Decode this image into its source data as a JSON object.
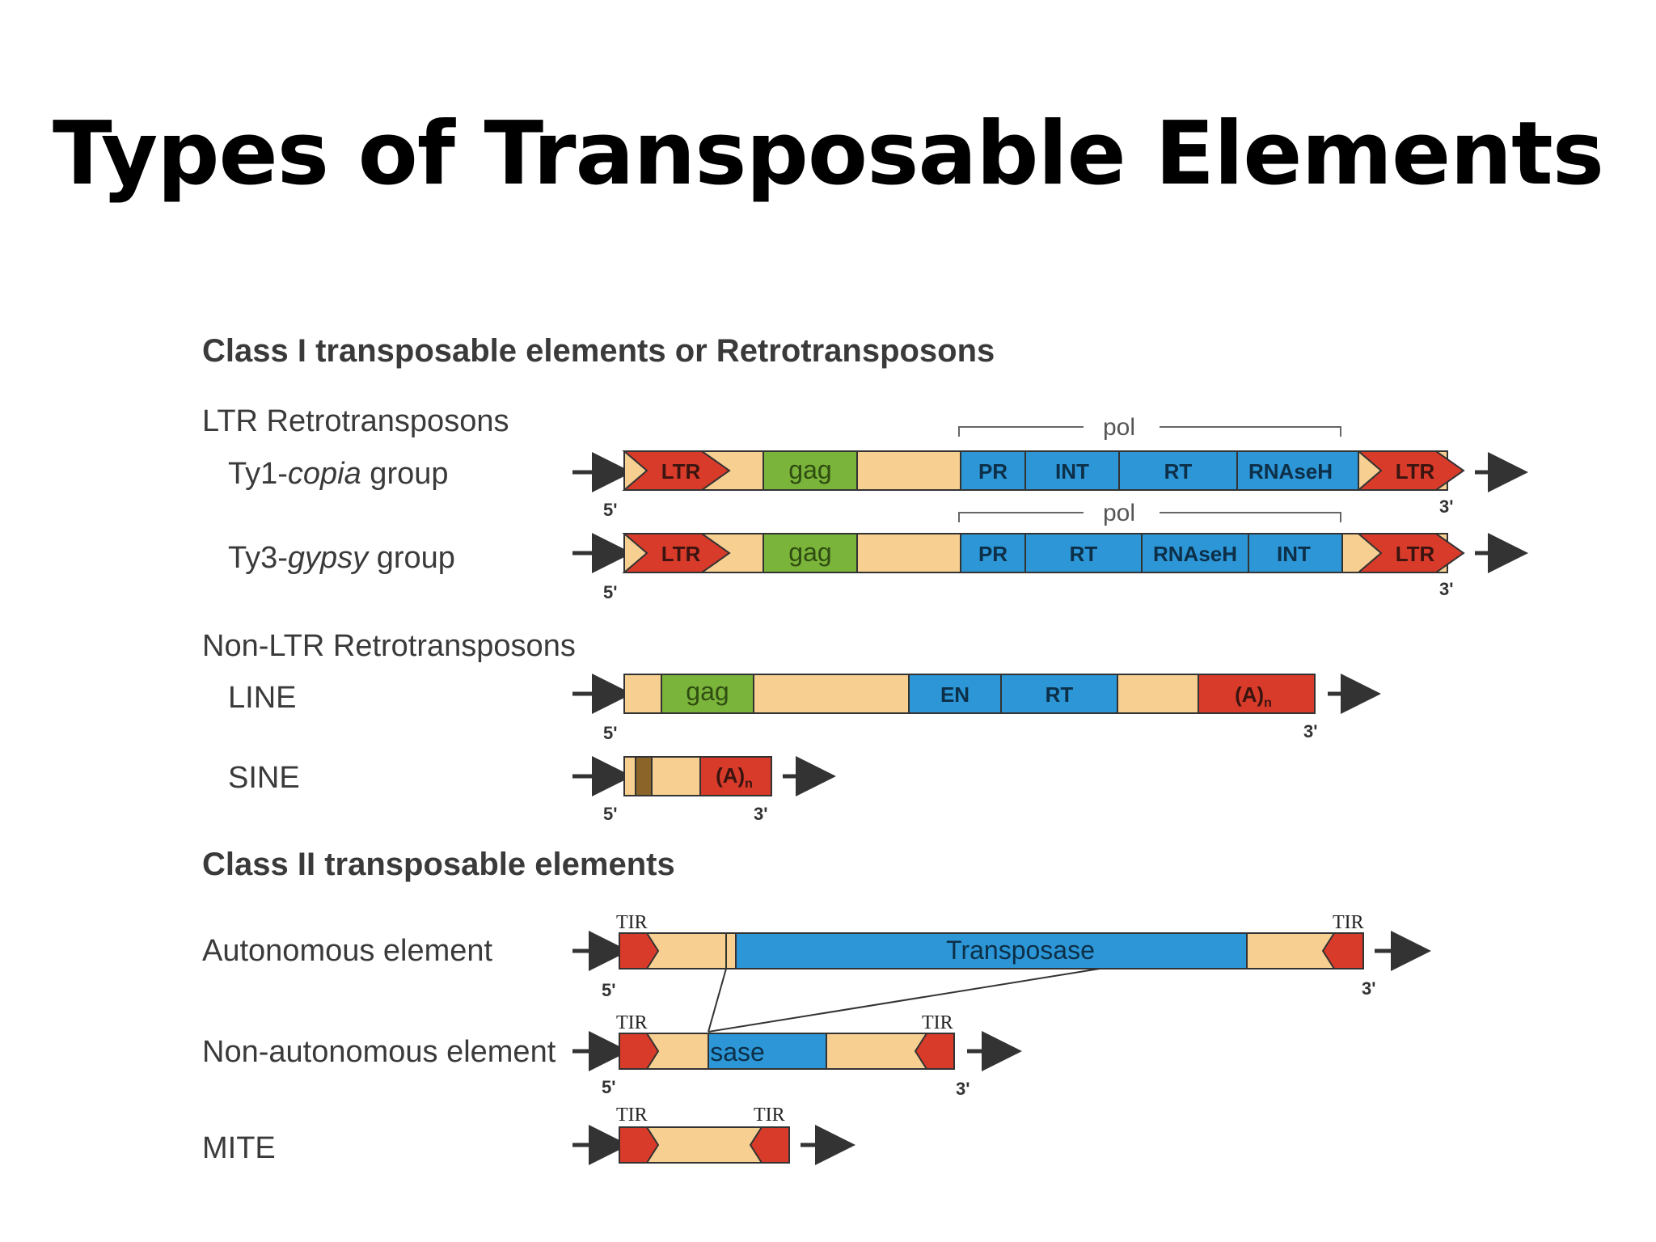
{
  "title": "Types of Transposable Elements",
  "colors": {
    "background": "#f6cf91",
    "ltr": "#d83b2a",
    "gag": "#7bb43a",
    "pol": "#2c96d6",
    "polyA": "#d83b2a",
    "tir": "#d83b2a",
    "outline": "#333333"
  },
  "class1": {
    "heading": "Class I transposable elements or Retrotransposons",
    "ltr_heading": "LTR Retrotransposons",
    "nonltr_heading": "Non-LTR Retrotransposons",
    "ty1": {
      "label_pre": "Ty1-",
      "label_italic": "copia",
      "label_post": " group",
      "pol": "pol",
      "ltr_left": "LTR",
      "gag": "gag",
      "pr": "PR",
      "int": "INT",
      "rt": "RT",
      "rnaseh": "RNAseH",
      "ltr_right": "LTR",
      "five": "5'",
      "three": "3'"
    },
    "ty3": {
      "label_pre": "Ty3-",
      "label_italic": "gypsy",
      "label_post": " group",
      "pol": "pol",
      "ltr_left": "LTR",
      "gag": "gag",
      "pr": "PR",
      "rt": "RT",
      "rnaseh": "RNAseH",
      "int": "INT",
      "ltr_right": "LTR",
      "five": "5'",
      "three": "3'"
    },
    "line": {
      "label": "LINE",
      "gag": "gag",
      "en": "EN",
      "rt": "RT",
      "polyA": "(A)",
      "polyA_sub": "n",
      "five": "5'",
      "three": "3'"
    },
    "sine": {
      "label": "SINE",
      "polyA": "(A)",
      "polyA_sub": "n",
      "five": "5'",
      "three": "3'"
    }
  },
  "class2": {
    "heading": "Class II transposable elements",
    "autonomous": {
      "label": "Autonomous element",
      "transposase": "Transposase",
      "tir_left": "TIR",
      "tir_right": "TIR",
      "five": "5'",
      "three": "3'"
    },
    "nonautonomous": {
      "label": "Non-autonomous element",
      "sase": "sase",
      "tir_left": "TIR",
      "tir_right": "TIR",
      "five": "5'",
      "three": "3'"
    },
    "mite": {
      "label": "MITE",
      "tir_left": "TIR",
      "tir_right": "TIR"
    }
  }
}
